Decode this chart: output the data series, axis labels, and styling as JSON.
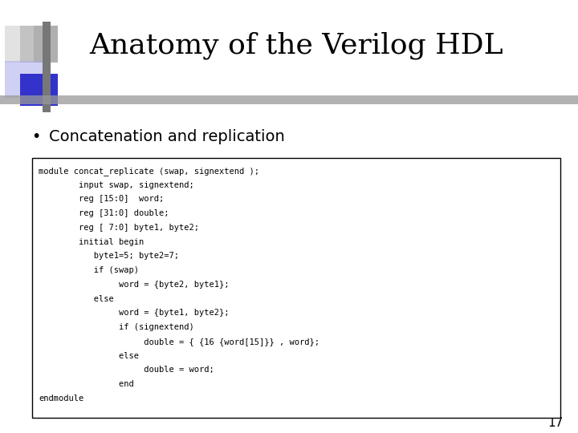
{
  "title": "Anatomy of the Verilog HDL",
  "bullet": "Concatenation and replication",
  "code_lines": [
    "module concat_replicate (swap, signextend );",
    "        input swap, signextend;",
    "        reg [15:0]  word;",
    "        reg [31:0] double;",
    "        reg [ 7:0] byte1, byte2;",
    "        initial begin",
    "           byte1=5; byte2=7;",
    "           if (swap)",
    "                word = {byte2, byte1};",
    "           else",
    "                word = {byte1, byte2};",
    "                if (signextend)",
    "                     double = { {16 {word[15]}} , word};",
    "                else",
    "                     double = word;",
    "                end",
    "endmodule"
  ],
  "page_number": "17",
  "bg_color": "#ffffff",
  "title_color": "#000000",
  "bullet_color": "#000000",
  "code_border": "#000000",
  "title_fontsize": 26,
  "bullet_fontsize": 14,
  "code_fontsize": 7.5,
  "page_num_fontsize": 11,
  "logo_blue_color": "#3333cc",
  "logo_bar_color": "#888888"
}
